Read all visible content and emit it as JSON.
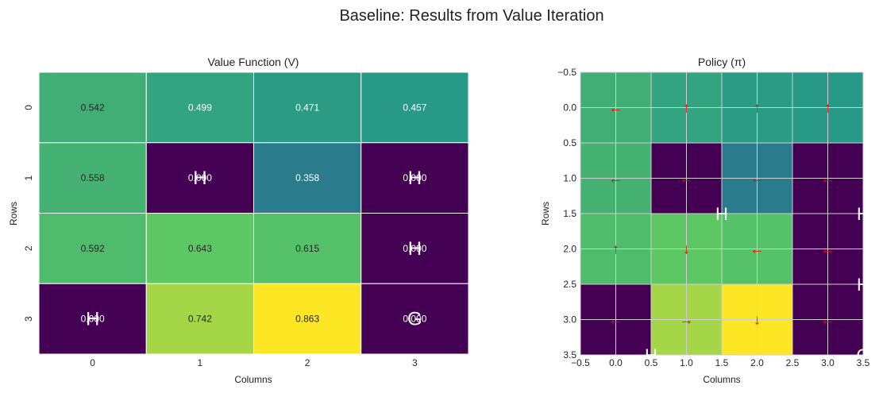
{
  "suptitle": "Baseline: Results from Value Iteration",
  "chart_data": [
    {
      "type": "heatmap",
      "title": "Value Function (V)",
      "xlabel": "Columns",
      "ylabel": "Rows",
      "x_ticks": [
        "0",
        "1",
        "2",
        "3"
      ],
      "y_ticks": [
        "0",
        "1",
        "2",
        "3"
      ],
      "colormap": "viridis",
      "values": [
        [
          0.542,
          0.499,
          0.471,
          0.457
        ],
        [
          0.558,
          0.0,
          0.358,
          0.0
        ],
        [
          0.592,
          0.643,
          0.615,
          0.0
        ],
        [
          0.0,
          0.742,
          0.863,
          0.0
        ]
      ],
      "cell_labels": [
        [
          "0.542",
          "0.499",
          "0.471",
          "0.457"
        ],
        [
          "0.558",
          "0.000",
          "0.358",
          "0.000"
        ],
        [
          "0.592",
          "0.643",
          "0.615",
          "0.000"
        ],
        [
          "0.000",
          "0.742",
          "0.863",
          "0.000"
        ]
      ],
      "markers": [
        {
          "row": 1,
          "col": 1,
          "text": "H"
        },
        {
          "row": 1,
          "col": 3,
          "text": "H"
        },
        {
          "row": 2,
          "col": 3,
          "text": "H"
        },
        {
          "row": 3,
          "col": 0,
          "text": "H"
        },
        {
          "row": 3,
          "col": 3,
          "text": "G"
        }
      ]
    },
    {
      "type": "heatmap",
      "title": "Policy (π)",
      "xlabel": "Columns",
      "ylabel": "Rows",
      "xlim": [
        -0.5,
        3.5
      ],
      "ylim": [
        3.5,
        -0.5
      ],
      "x_ticks": [
        "−0.5",
        "0.0",
        "0.5",
        "1.0",
        "1.5",
        "2.0",
        "2.5",
        "3.0",
        "3.5"
      ],
      "y_ticks": [
        "−0.5",
        "0.0",
        "0.5",
        "1.0",
        "1.5",
        "2.0",
        "2.5",
        "3.0",
        "3.5"
      ],
      "grid": true,
      "colormap": "viridis",
      "arrow_color": "#ff0000",
      "values": [
        [
          0.542,
          0.499,
          0.471,
          0.457
        ],
        [
          0.558,
          0.0,
          0.358,
          0.0
        ],
        [
          0.592,
          0.643,
          0.615,
          0.0
        ],
        [
          0.0,
          0.742,
          0.863,
          0.0
        ]
      ],
      "policy": [
        [
          "←",
          "↑",
          "↑",
          "↑"
        ],
        [
          "←",
          "←",
          "←",
          "←"
        ],
        [
          "↑",
          "↓",
          "←",
          "←"
        ],
        [
          "←",
          "→",
          "↓",
          "←"
        ]
      ],
      "markers": [
        {
          "x": 1.5,
          "y": 1.5,
          "text": "H"
        },
        {
          "x": 3.5,
          "y": 1.5,
          "text": "H"
        },
        {
          "x": 3.5,
          "y": 2.5,
          "text": "H"
        },
        {
          "x": 0.5,
          "y": 3.5,
          "text": "H"
        },
        {
          "x": 3.5,
          "y": 3.5,
          "text": "G"
        }
      ]
    }
  ]
}
